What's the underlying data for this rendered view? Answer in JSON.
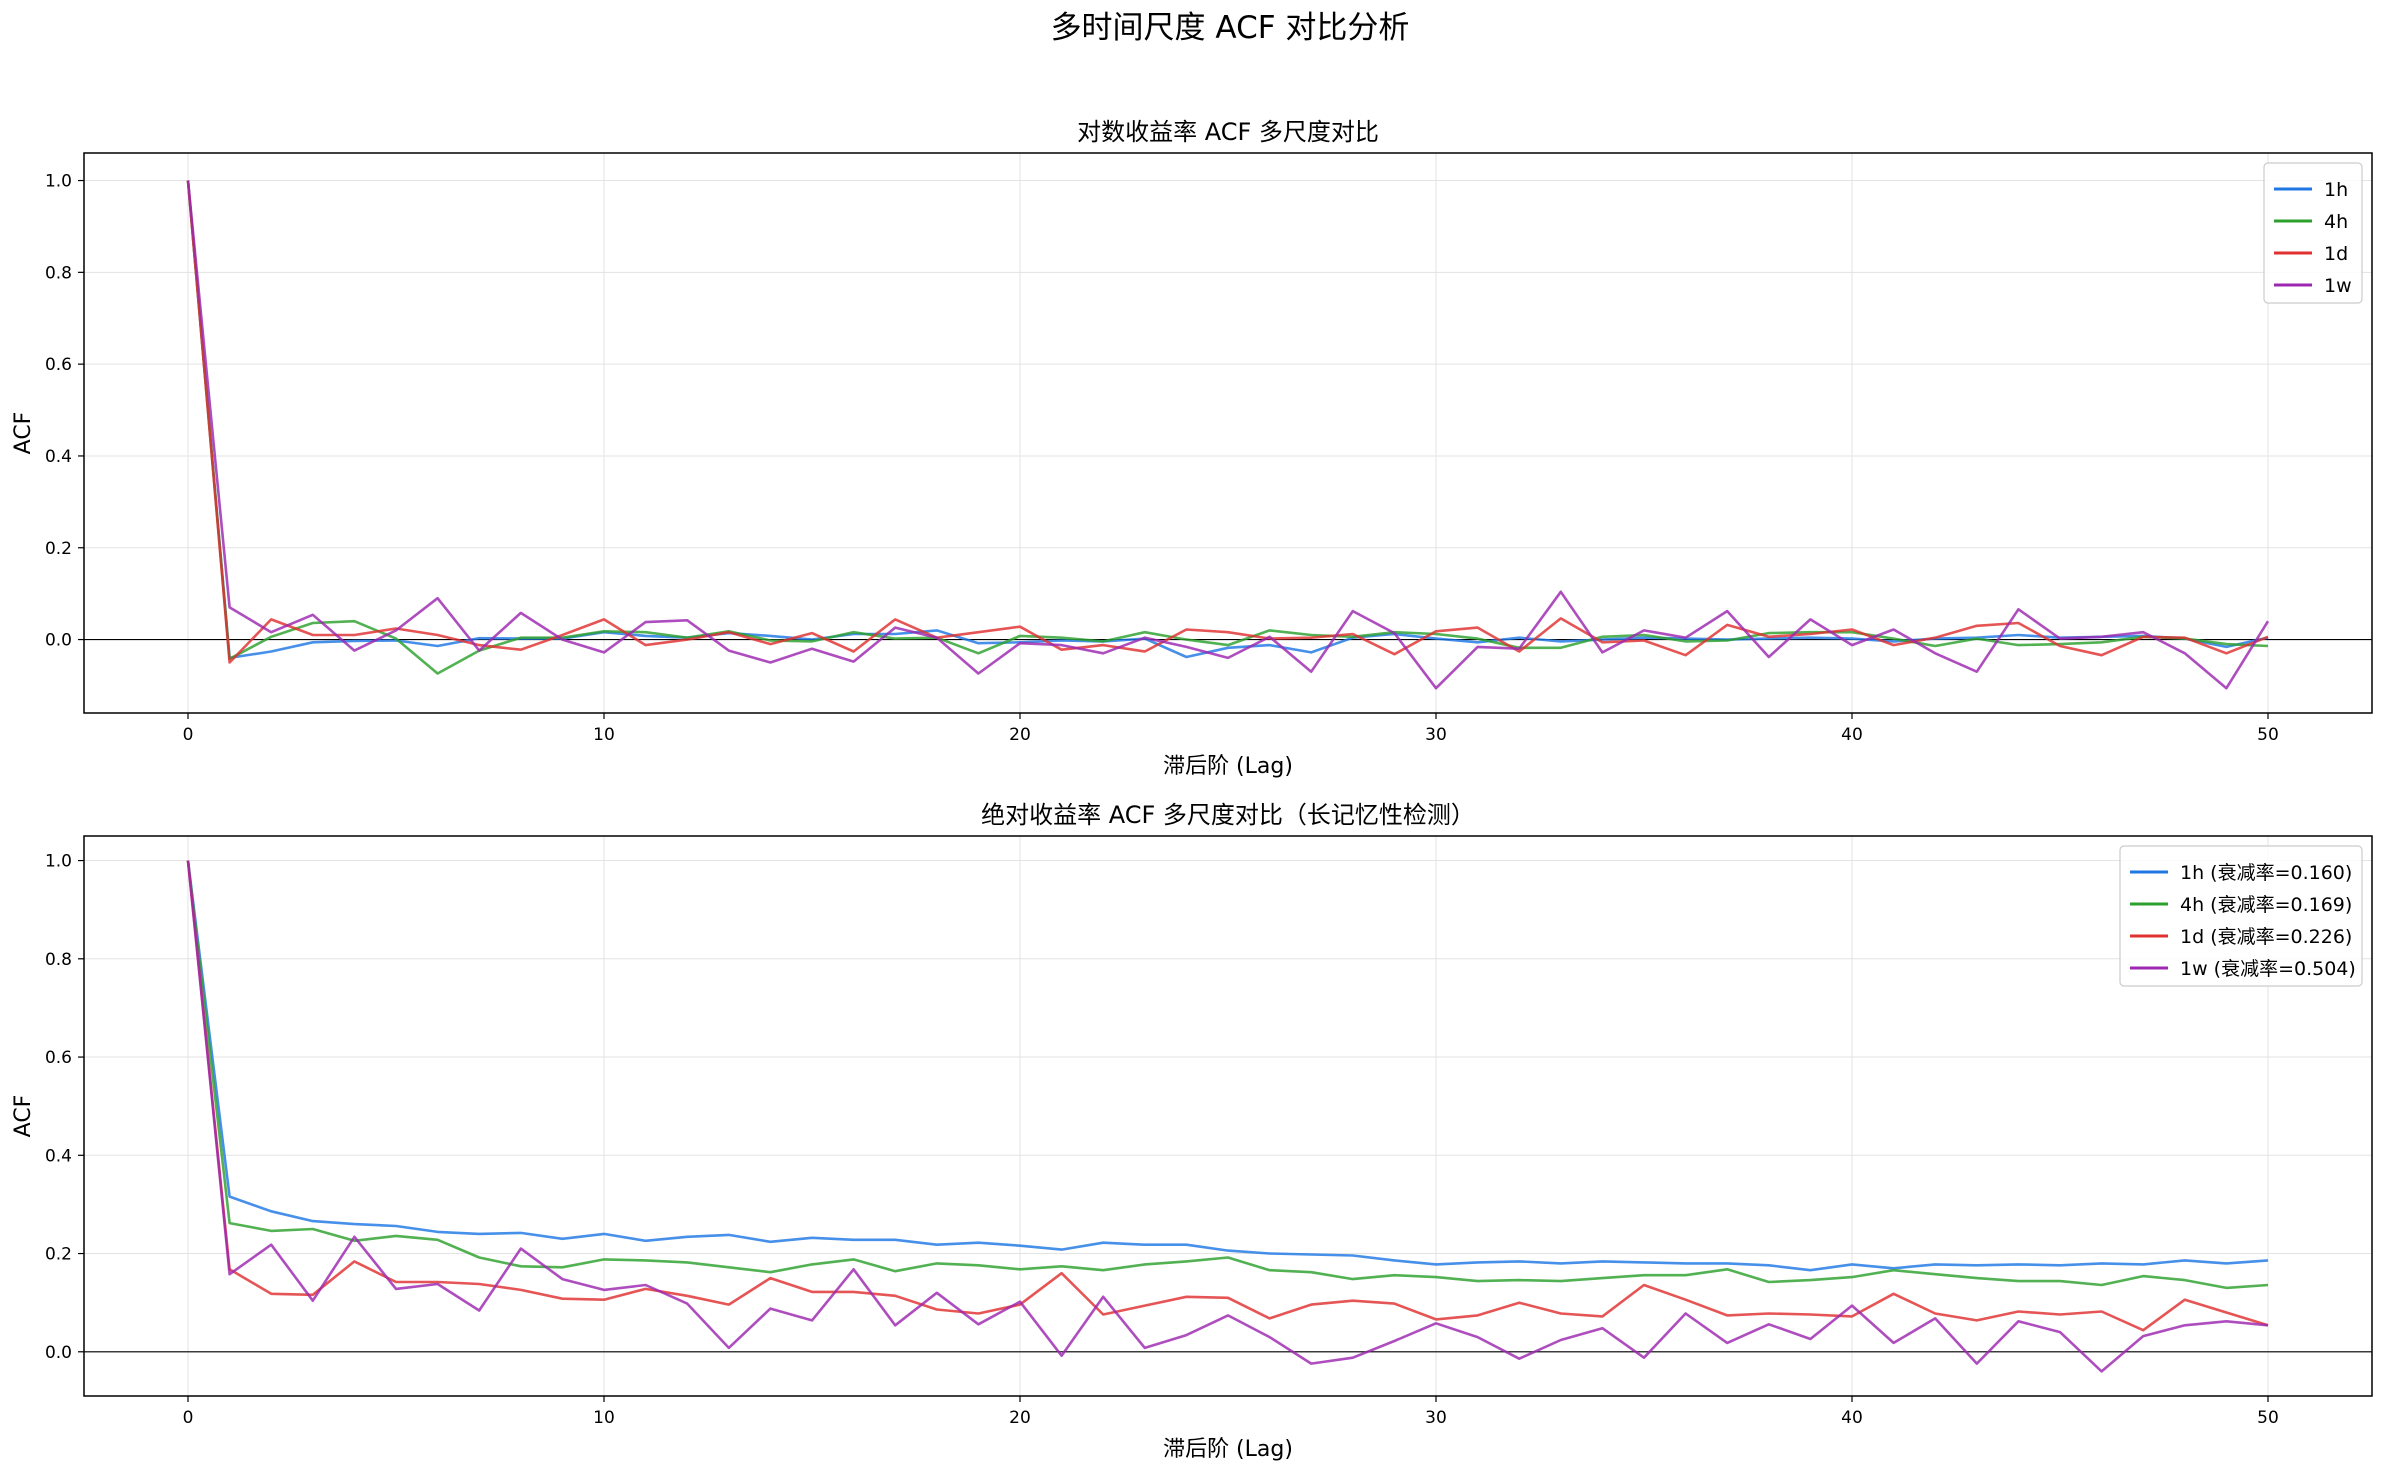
{
  "figure_title": "多时间尺度 ACF 对比分析",
  "chart_data": [
    {
      "type": "line",
      "title": "对数收益率 ACF 多尺度对比",
      "xlabel": "滞后阶 (Lag)",
      "ylabel": "ACF",
      "xlim": [
        -2.5,
        52.5
      ],
      "ylim": [
        -0.16,
        1.06
      ],
      "xticks": [
        0,
        10,
        20,
        30,
        40,
        50
      ],
      "xtick_labels": [
        "0",
        "10",
        "20",
        "30",
        "40",
        "50"
      ],
      "yticks": [
        0.0,
        0.2,
        0.4,
        0.6,
        0.8,
        1.0
      ],
      "ytick_labels": [
        "0.0",
        "0.2",
        "0.4",
        "0.6",
        "0.8",
        "1.0"
      ],
      "grid": true,
      "zero_line": true,
      "legend_position": "top-right",
      "x": [
        0,
        1,
        2,
        3,
        4,
        5,
        6,
        7,
        8,
        9,
        10,
        11,
        12,
        13,
        14,
        15,
        16,
        17,
        18,
        19,
        20,
        21,
        22,
        23,
        24,
        25,
        26,
        27,
        28,
        29,
        30,
        31,
        32,
        33,
        34,
        35,
        36,
        37,
        38,
        39,
        40,
        41,
        42,
        43,
        44,
        45,
        46,
        47,
        48,
        49,
        50
      ],
      "series": [
        {
          "name": "1h",
          "color": "#1f77e4",
          "values": [
            1.0,
            -0.04,
            -0.026,
            -0.006,
            -0.003,
            -0.002,
            -0.014,
            0.003,
            0.002,
            0.002,
            0.016,
            0.008,
            0.004,
            0.014,
            0.008,
            0.0,
            0.012,
            0.012,
            0.02,
            -0.008,
            -0.006,
            -0.002,
            -0.004,
            0.002,
            -0.038,
            -0.018,
            -0.012,
            -0.028,
            0.004,
            0.012,
            0.002,
            -0.006,
            0.004,
            -0.004,
            0.0,
            0.004,
            0.002,
            0.0,
            0.002,
            0.004,
            0.002,
            -0.004,
            0.002,
            0.004,
            0.01,
            0.004,
            0.006,
            0.008,
            0.002,
            -0.016,
            0.004
          ]
        },
        {
          "name": "4h",
          "color": "#2ca02c",
          "values": [
            1.0,
            -0.042,
            0.006,
            0.036,
            0.04,
            0.002,
            -0.074,
            -0.024,
            0.004,
            0.004,
            0.018,
            0.016,
            0.004,
            0.018,
            -0.002,
            -0.004,
            0.016,
            0.002,
            0.004,
            -0.03,
            0.008,
            0.004,
            -0.004,
            0.016,
            0.0,
            -0.012,
            0.02,
            0.01,
            0.006,
            0.016,
            0.012,
            0.002,
            -0.018,
            -0.018,
            0.006,
            0.01,
            -0.004,
            -0.002,
            0.014,
            0.016,
            0.016,
            0.002,
            -0.014,
            0.002,
            -0.012,
            -0.01,
            -0.006,
            0.006,
            0.002,
            -0.01,
            -0.014
          ]
        },
        {
          "name": "1d",
          "color": "#e03030",
          "values": [
            1.0,
            -0.05,
            0.044,
            0.01,
            0.01,
            0.024,
            0.01,
            -0.012,
            -0.022,
            0.01,
            0.044,
            -0.012,
            0.0,
            0.016,
            -0.01,
            0.014,
            -0.026,
            0.044,
            0.004,
            0.016,
            0.028,
            -0.022,
            -0.012,
            -0.026,
            0.022,
            0.016,
            0.002,
            0.004,
            0.012,
            -0.032,
            0.018,
            0.026,
            -0.026,
            0.046,
            -0.006,
            -0.002,
            -0.034,
            0.032,
            0.006,
            0.012,
            0.022,
            -0.012,
            0.004,
            0.03,
            0.036,
            -0.014,
            -0.034,
            0.006,
            0.004,
            -0.03,
            0.006
          ]
        },
        {
          "name": "1w",
          "color": "#9c27b0",
          "values": [
            1.0,
            0.07,
            0.016,
            0.054,
            -0.024,
            0.02,
            0.09,
            -0.024,
            0.058,
            0.0,
            -0.028,
            0.038,
            0.042,
            -0.024,
            -0.05,
            -0.02,
            -0.048,
            0.026,
            0.004,
            -0.074,
            -0.008,
            -0.012,
            -0.03,
            0.004,
            -0.016,
            -0.04,
            0.006,
            -0.07,
            0.062,
            0.014,
            -0.106,
            -0.016,
            -0.02,
            0.104,
            -0.028,
            0.02,
            0.004,
            0.062,
            -0.038,
            0.044,
            -0.012,
            0.022,
            -0.03,
            -0.07,
            0.066,
            0.002,
            0.006,
            0.016,
            -0.03,
            -0.106,
            0.04
          ]
        }
      ]
    },
    {
      "type": "line",
      "title": "绝对收益率 ACF 多尺度对比（长记忆性检测）",
      "xlabel": "滞后阶 (Lag)",
      "ylabel": "ACF",
      "xlim": [
        -2.5,
        52.5
      ],
      "ylim": [
        -0.09,
        1.05
      ],
      "xticks": [
        0,
        10,
        20,
        30,
        40,
        50
      ],
      "xtick_labels": [
        "0",
        "10",
        "20",
        "30",
        "40",
        "50"
      ],
      "yticks": [
        0.0,
        0.2,
        0.4,
        0.6,
        0.8,
        1.0
      ],
      "ytick_labels": [
        "0.0",
        "0.2",
        "0.4",
        "0.6",
        "0.8",
        "1.0"
      ],
      "grid": true,
      "zero_line": true,
      "legend_position": "top-right",
      "x": [
        0,
        1,
        2,
        3,
        4,
        5,
        6,
        7,
        8,
        9,
        10,
        11,
        12,
        13,
        14,
        15,
        16,
        17,
        18,
        19,
        20,
        21,
        22,
        23,
        24,
        25,
        26,
        27,
        28,
        29,
        30,
        31,
        32,
        33,
        34,
        35,
        36,
        37,
        38,
        39,
        40,
        41,
        42,
        43,
        44,
        45,
        46,
        47,
        48,
        49,
        50
      ],
      "series": [
        {
          "name": "1h (衰减率=0.160)",
          "color": "#1f77e4",
          "values": [
            1.0,
            0.316,
            0.286,
            0.266,
            0.26,
            0.256,
            0.244,
            0.24,
            0.242,
            0.23,
            0.24,
            0.226,
            0.234,
            0.238,
            0.224,
            0.232,
            0.228,
            0.228,
            0.218,
            0.222,
            0.216,
            0.208,
            0.222,
            0.218,
            0.218,
            0.206,
            0.2,
            0.198,
            0.196,
            0.186,
            0.178,
            0.182,
            0.184,
            0.18,
            0.184,
            0.182,
            0.18,
            0.18,
            0.176,
            0.166,
            0.178,
            0.17,
            0.178,
            0.176,
            0.178,
            0.176,
            0.18,
            0.178,
            0.186,
            0.18,
            0.186
          ]
        },
        {
          "name": "4h (衰减率=0.169)",
          "color": "#2ca02c",
          "values": [
            1.0,
            0.262,
            0.246,
            0.25,
            0.226,
            0.236,
            0.228,
            0.192,
            0.174,
            0.172,
            0.188,
            0.186,
            0.182,
            0.172,
            0.162,
            0.178,
            0.188,
            0.164,
            0.18,
            0.176,
            0.168,
            0.174,
            0.166,
            0.178,
            0.184,
            0.192,
            0.166,
            0.162,
            0.148,
            0.156,
            0.152,
            0.144,
            0.146,
            0.144,
            0.15,
            0.156,
            0.156,
            0.168,
            0.142,
            0.146,
            0.152,
            0.166,
            0.158,
            0.15,
            0.144,
            0.144,
            0.136,
            0.154,
            0.146,
            0.13,
            0.136
          ]
        },
        {
          "name": "1d (衰减率=0.226)",
          "color": "#e03030",
          "values": [
            1.0,
            0.168,
            0.118,
            0.116,
            0.184,
            0.142,
            0.142,
            0.138,
            0.126,
            0.108,
            0.106,
            0.128,
            0.114,
            0.096,
            0.15,
            0.122,
            0.122,
            0.114,
            0.086,
            0.078,
            0.096,
            0.16,
            0.076,
            0.094,
            0.112,
            0.11,
            0.068,
            0.096,
            0.104,
            0.098,
            0.066,
            0.074,
            0.1,
            0.078,
            0.072,
            0.136,
            0.106,
            0.074,
            0.078,
            0.076,
            0.072,
            0.118,
            0.078,
            0.064,
            0.082,
            0.076,
            0.082,
            0.044,
            0.106,
            0.08,
            0.054
          ]
        },
        {
          "name": "1w (衰减率=0.504)",
          "color": "#9c27b0",
          "values": [
            1.0,
            0.158,
            0.218,
            0.104,
            0.234,
            0.128,
            0.138,
            0.084,
            0.21,
            0.148,
            0.126,
            0.136,
            0.098,
            0.008,
            0.088,
            0.064,
            0.168,
            0.054,
            0.12,
            0.056,
            0.102,
            -0.008,
            0.112,
            0.008,
            0.034,
            0.074,
            0.03,
            -0.024,
            -0.012,
            0.022,
            0.058,
            0.03,
            -0.014,
            0.024,
            0.048,
            -0.012,
            0.078,
            0.018,
            0.056,
            0.026,
            0.094,
            0.018,
            0.068,
            -0.024,
            0.062,
            0.04,
            -0.04,
            0.032,
            0.054,
            0.062,
            0.054
          ]
        }
      ]
    }
  ]
}
